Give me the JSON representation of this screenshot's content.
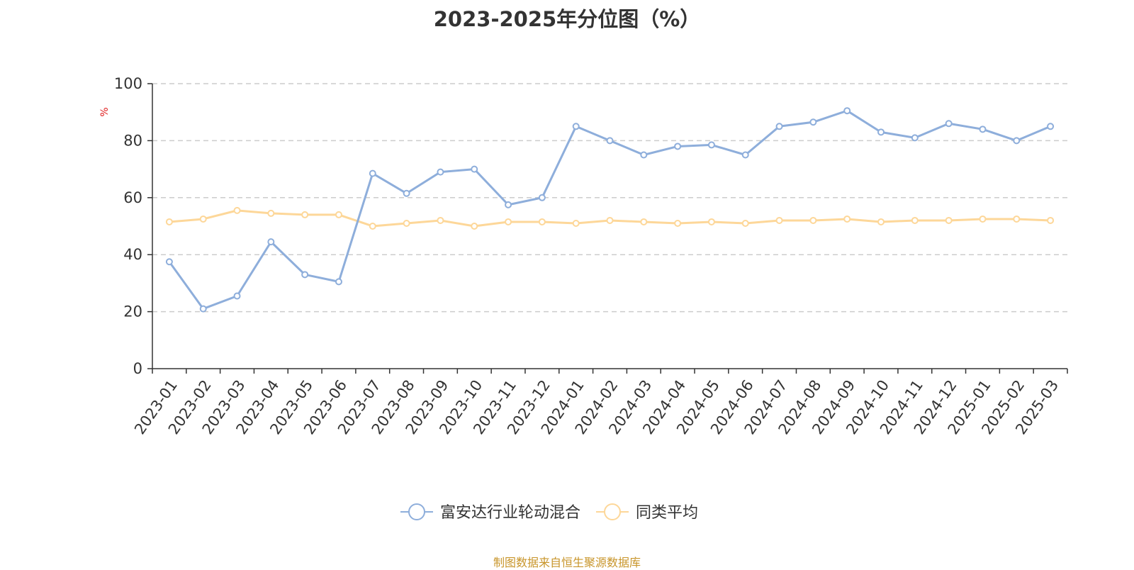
{
  "chart_data": {
    "type": "line",
    "title": "2023-2025年分位图（%）",
    "ylabel": "%",
    "xlabel": "",
    "ylim": [
      0,
      100
    ],
    "yticks": [
      0,
      20,
      40,
      60,
      80,
      100
    ],
    "grid": true,
    "legend_position": "bottom-center",
    "categories": [
      "2023-01",
      "2023-02",
      "2023-03",
      "2023-04",
      "2023-05",
      "2023-06",
      "2023-07",
      "2023-08",
      "2023-09",
      "2023-10",
      "2023-11",
      "2023-12",
      "2024-01",
      "2024-02",
      "2024-03",
      "2024-04",
      "2024-05",
      "2024-06",
      "2024-07",
      "2024-08",
      "2024-09",
      "2024-10",
      "2024-11",
      "2024-12",
      "2025-01",
      "2025-02",
      "2025-03"
    ],
    "series": [
      {
        "name": "富安达行业轮动混合",
        "color": "#8eaedb",
        "values": [
          37.5,
          21.0,
          25.5,
          44.5,
          33.0,
          30.5,
          68.5,
          61.5,
          69.0,
          70.0,
          57.5,
          60.0,
          85.0,
          80.0,
          75.0,
          78.0,
          78.5,
          75.0,
          85.0,
          86.5,
          90.5,
          83.0,
          81.0,
          86.0,
          84.0,
          80.0,
          85.0
        ]
      },
      {
        "name": "同类平均",
        "color": "#fdd799",
        "values": [
          51.5,
          52.5,
          55.5,
          54.5,
          54.0,
          54.0,
          50.0,
          51.0,
          52.0,
          50.0,
          51.5,
          51.5,
          51.0,
          52.0,
          51.5,
          51.0,
          51.5,
          51.0,
          52.0,
          52.0,
          52.5,
          51.5,
          52.0,
          52.0,
          52.5,
          52.5,
          52.0
        ]
      }
    ]
  },
  "source_note": "制图数据来自恒生聚源数据库",
  "colors": {
    "axis": "#333333",
    "grid": "#cccccc",
    "ylabel": "#e02020",
    "source": "#c8952a"
  }
}
